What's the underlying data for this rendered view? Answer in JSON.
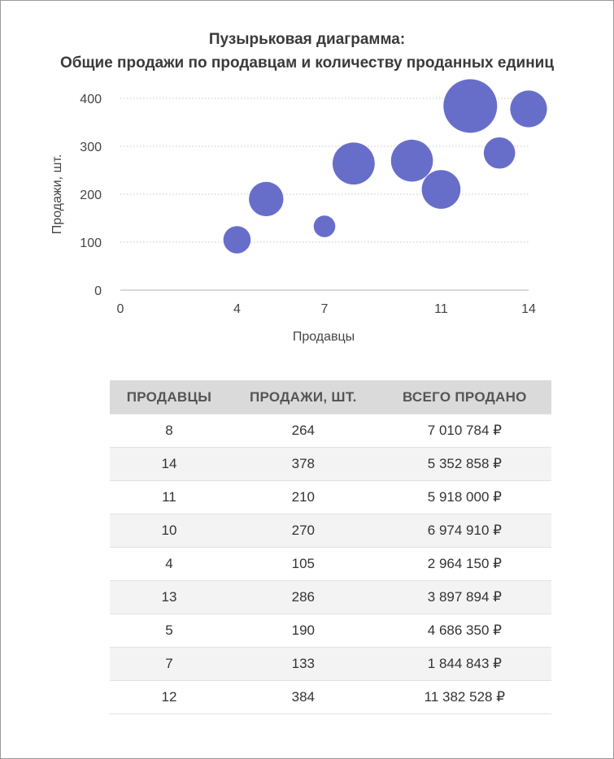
{
  "chart_data": {
    "type": "scatter",
    "title_line1": "Пузырьковая диаграмма:",
    "title_line2": "Общие продажи по продавцам и количеству проданных единиц",
    "xlabel": "Продавцы",
    "ylabel": "Продажи, шт.",
    "xlim": [
      0,
      14
    ],
    "ylim": [
      0,
      400
    ],
    "x_ticks": [
      "0",
      "4",
      "7",
      "11",
      "14"
    ],
    "y_ticks": [
      "0",
      "100",
      "200",
      "300",
      "400"
    ],
    "grid": true,
    "bubble_color": "#6168c8",
    "points": [
      {
        "x": 8,
        "y": 264,
        "size": 7010784
      },
      {
        "x": 14,
        "y": 378,
        "size": 5352858
      },
      {
        "x": 11,
        "y": 210,
        "size": 5918000
      },
      {
        "x": 10,
        "y": 270,
        "size": 6974910
      },
      {
        "x": 4,
        "y": 105,
        "size": 2964150
      },
      {
        "x": 13,
        "y": 286,
        "size": 3897894
      },
      {
        "x": 5,
        "y": 190,
        "size": 4686350
      },
      {
        "x": 7,
        "y": 133,
        "size": 1844843
      },
      {
        "x": 12,
        "y": 384,
        "size": 11382528
      }
    ]
  },
  "table": {
    "headers": [
      "ПРОДАВЦЫ",
      "ПРОДАЖИ, ШТ.",
      "ВСЕГО ПРОДАНО"
    ],
    "rows": [
      [
        "8",
        "264",
        "7 010 784 ₽"
      ],
      [
        "14",
        "378",
        "5 352 858 ₽"
      ],
      [
        "11",
        "210",
        "5 918 000 ₽"
      ],
      [
        "10",
        "270",
        "6 974 910 ₽"
      ],
      [
        "4",
        "105",
        "2 964 150 ₽"
      ],
      [
        "13",
        "286",
        "3 897 894 ₽"
      ],
      [
        "5",
        "190",
        "4 686 350 ₽"
      ],
      [
        "7",
        "133",
        "1 844 843 ₽"
      ],
      [
        "12",
        "384",
        "11 382 528 ₽"
      ]
    ]
  }
}
